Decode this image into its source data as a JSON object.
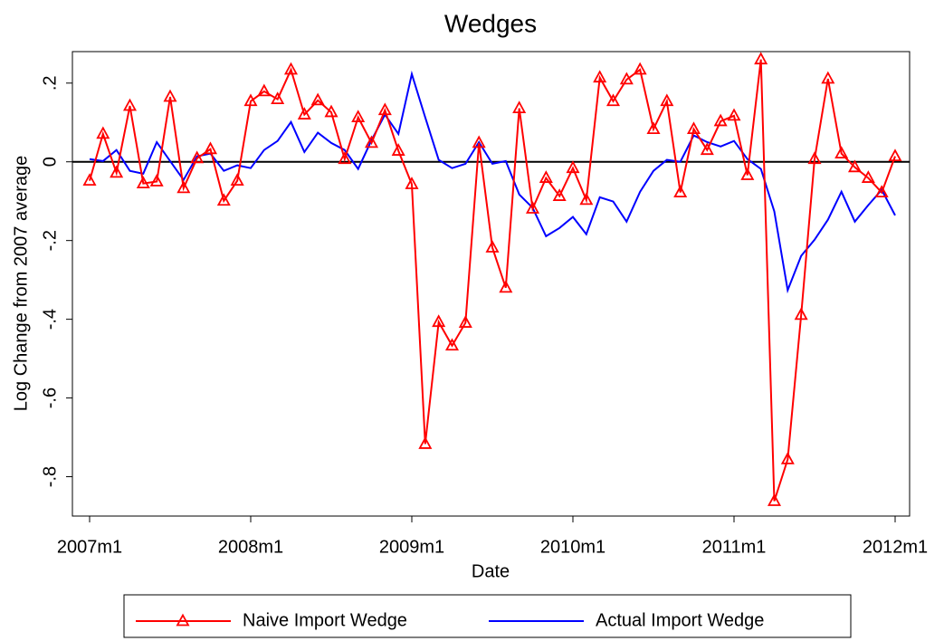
{
  "chart_data": {
    "type": "line",
    "title": "Wedges",
    "xlabel": "Date",
    "ylabel": "Log Change from 2007 average",
    "x": [
      "2007m1",
      "2007m2",
      "2007m3",
      "2007m4",
      "2007m5",
      "2007m6",
      "2007m7",
      "2007m8",
      "2007m9",
      "2007m10",
      "2007m11",
      "2007m12",
      "2008m1",
      "2008m2",
      "2008m3",
      "2008m4",
      "2008m5",
      "2008m6",
      "2008m7",
      "2008m8",
      "2008m9",
      "2008m10",
      "2008m11",
      "2008m12",
      "2009m1",
      "2009m2",
      "2009m3",
      "2009m4",
      "2009m5",
      "2009m6",
      "2009m7",
      "2009m8",
      "2009m9",
      "2009m10",
      "2009m11",
      "2009m12",
      "2010m1",
      "2010m2",
      "2010m3",
      "2010m4",
      "2010m5",
      "2010m6",
      "2010m7",
      "2010m8",
      "2010m9",
      "2010m10",
      "2010m11",
      "2010m12",
      "2011m1",
      "2011m2",
      "2011m3",
      "2011m4",
      "2011m5",
      "2011m6",
      "2011m7",
      "2011m8",
      "2011m9",
      "2011m10",
      "2011m11",
      "2011m12",
      "2012m1"
    ],
    "xticks": [
      "2007m1",
      "2008m1",
      "2009m1",
      "2010m1",
      "2011m1",
      "2012m1"
    ],
    "series": [
      {
        "name": "Naive Import Wedge",
        "color": "#ff0000",
        "marker": "triangle",
        "values": [
          -0.048,
          0.071,
          -0.028,
          0.142,
          -0.055,
          -0.05,
          0.165,
          -0.067,
          0.009,
          0.032,
          -0.099,
          -0.048,
          0.154,
          0.179,
          0.159,
          0.234,
          0.12,
          0.156,
          0.126,
          0.007,
          0.113,
          0.048,
          0.131,
          0.028,
          -0.057,
          -0.717,
          -0.407,
          -0.467,
          -0.409,
          0.048,
          -0.218,
          -0.32,
          0.136,
          -0.119,
          -0.041,
          -0.087,
          -0.016,
          -0.097,
          0.214,
          0.154,
          0.209,
          0.234,
          0.083,
          0.154,
          -0.078,
          0.083,
          0.03,
          0.103,
          0.117,
          -0.034,
          0.26,
          -0.862,
          -0.756,
          -0.389,
          0.007,
          0.211,
          0.021,
          -0.014,
          -0.041,
          -0.078,
          0.014
        ]
      },
      {
        "name": "Actual Import Wedge",
        "color": "#0000ff",
        "values": [
          0.007,
          0.002,
          0.03,
          -0.023,
          -0.03,
          0.05,
          0.002,
          -0.046,
          0.014,
          0.021,
          -0.023,
          -0.009,
          -0.016,
          0.03,
          0.053,
          0.101,
          0.025,
          0.074,
          0.048,
          0.03,
          -0.018,
          0.055,
          0.12,
          0.071,
          0.223,
          0.113,
          0.005,
          -0.016,
          -0.005,
          0.05,
          -0.005,
          0.002,
          -0.083,
          -0.117,
          -0.189,
          -0.168,
          -0.14,
          -0.184,
          -0.09,
          -0.101,
          -0.152,
          -0.076,
          -0.023,
          0.005,
          0,
          0.067,
          0.05,
          0.039,
          0.053,
          0.007,
          -0.018,
          -0.126,
          -0.326,
          -0.239,
          -0.198,
          -0.147,
          -0.076,
          -0.152,
          -0.11,
          -0.071,
          -0.136
        ]
      }
    ],
    "ylim": [
      -0.9,
      0.28
    ],
    "yticks": [
      {
        "value": -0.8,
        "label": "-.8"
      },
      {
        "value": -0.6,
        "label": "-.6"
      },
      {
        "value": -0.4,
        "label": "-.4"
      },
      {
        "value": -0.2,
        "label": "-.2"
      },
      0,
      {
        "value": 0.2,
        "label": ".2"
      }
    ],
    "reference_line": 0,
    "grid": false,
    "legend": "bottom"
  }
}
